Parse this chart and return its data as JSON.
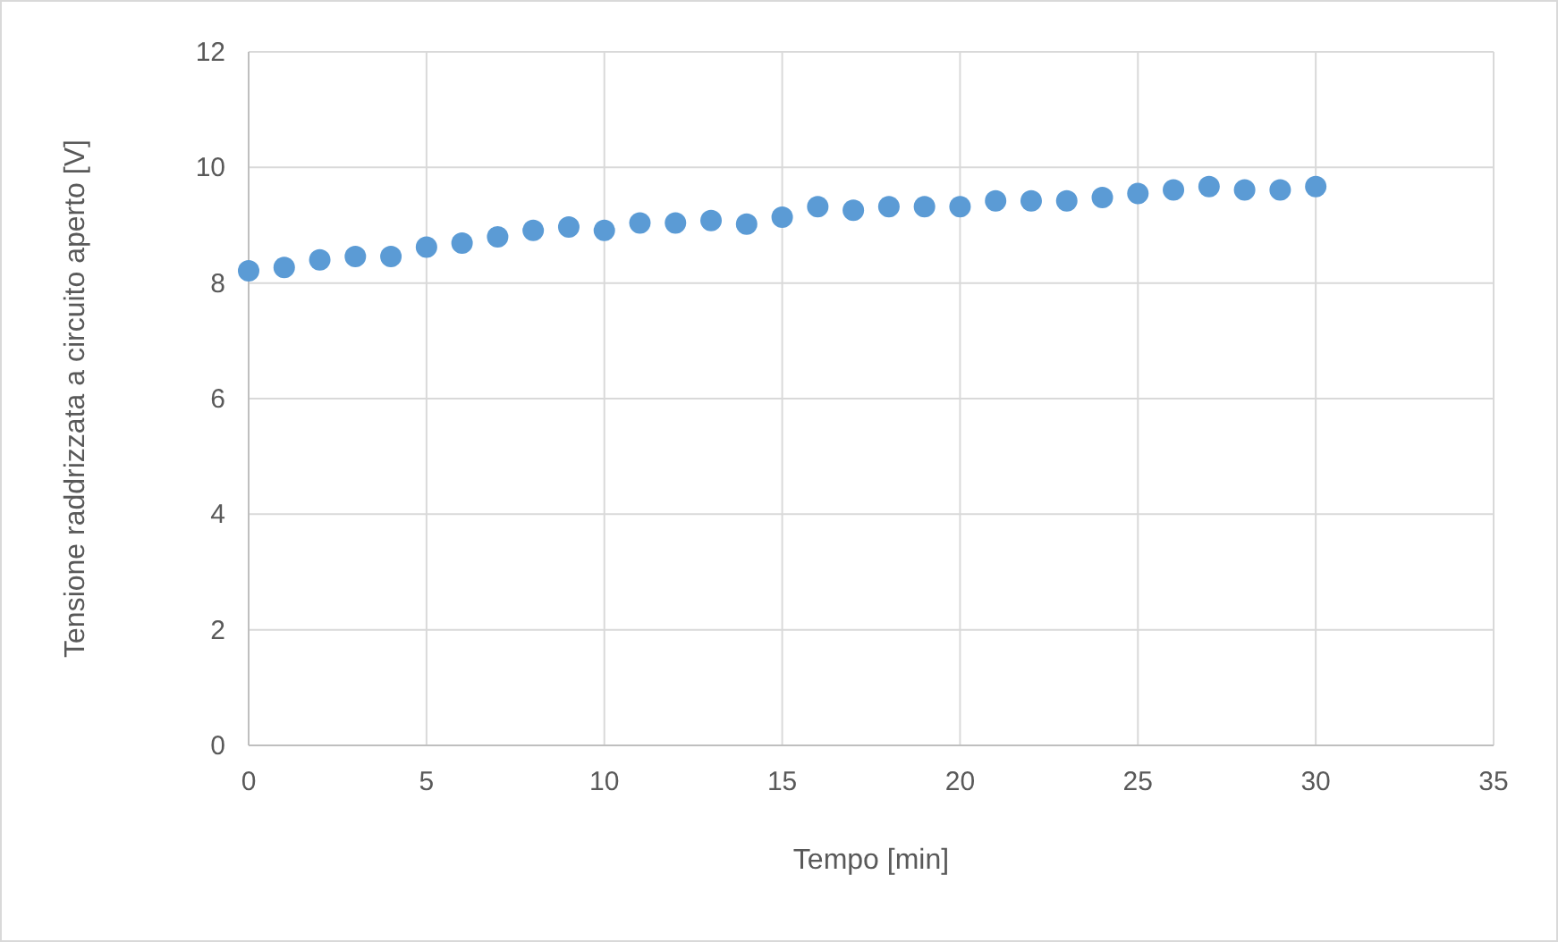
{
  "chart_data": {
    "type": "scatter",
    "xlabel": "Tempo  [min]",
    "ylabel": "Tensione raddrizzata a circuito aperto [V]",
    "x": [
      0,
      1,
      2,
      3,
      4,
      5,
      6,
      7,
      8,
      9,
      10,
      11,
      12,
      13,
      14,
      15,
      16,
      17,
      18,
      19,
      20,
      21,
      22,
      23,
      24,
      25,
      26,
      27,
      28,
      29,
      30
    ],
    "values": [
      8.21,
      8.27,
      8.4,
      8.46,
      8.46,
      8.62,
      8.69,
      8.8,
      8.91,
      8.97,
      8.91,
      9.04,
      9.04,
      9.08,
      9.02,
      9.14,
      9.32,
      9.26,
      9.32,
      9.32,
      9.32,
      9.42,
      9.42,
      9.42,
      9.48,
      9.55,
      9.61,
      9.67,
      9.61,
      9.61,
      9.67
    ],
    "color": "#5b9bd5",
    "marker": "circle",
    "xlim": [
      0,
      35
    ],
    "xticks": [
      0,
      5,
      10,
      15,
      20,
      25,
      30,
      35
    ],
    "ylim": [
      0,
      12
    ],
    "yticks": [
      0,
      2,
      4,
      6,
      8,
      10,
      12
    ],
    "grid": true
  }
}
